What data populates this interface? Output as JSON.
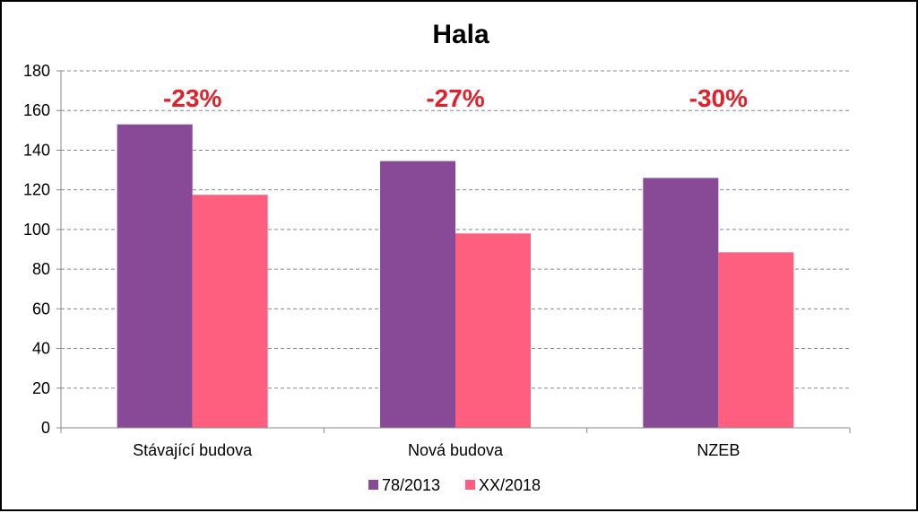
{
  "chart_data": {
    "type": "bar",
    "title": "Hala",
    "xlabel": "",
    "ylabel": "",
    "categories": [
      "Stávající budova",
      "Nová budova",
      "NZEB"
    ],
    "series": [
      {
        "name": "78/2013",
        "values": [
          153,
          134.5,
          126
        ],
        "color": "#884a97"
      },
      {
        "name": "XX/2018",
        "values": [
          117.5,
          98,
          88.5
        ],
        "color": "#ff5f7f"
      }
    ],
    "ylim": [
      0,
      180
    ],
    "yticks": [
      0,
      20,
      40,
      60,
      80,
      100,
      120,
      140,
      160,
      180
    ],
    "grid": true,
    "legend": "bottom",
    "annotations": [
      "-23%",
      "-27%",
      "-30%"
    ],
    "annotation_color": "#e2202a"
  }
}
